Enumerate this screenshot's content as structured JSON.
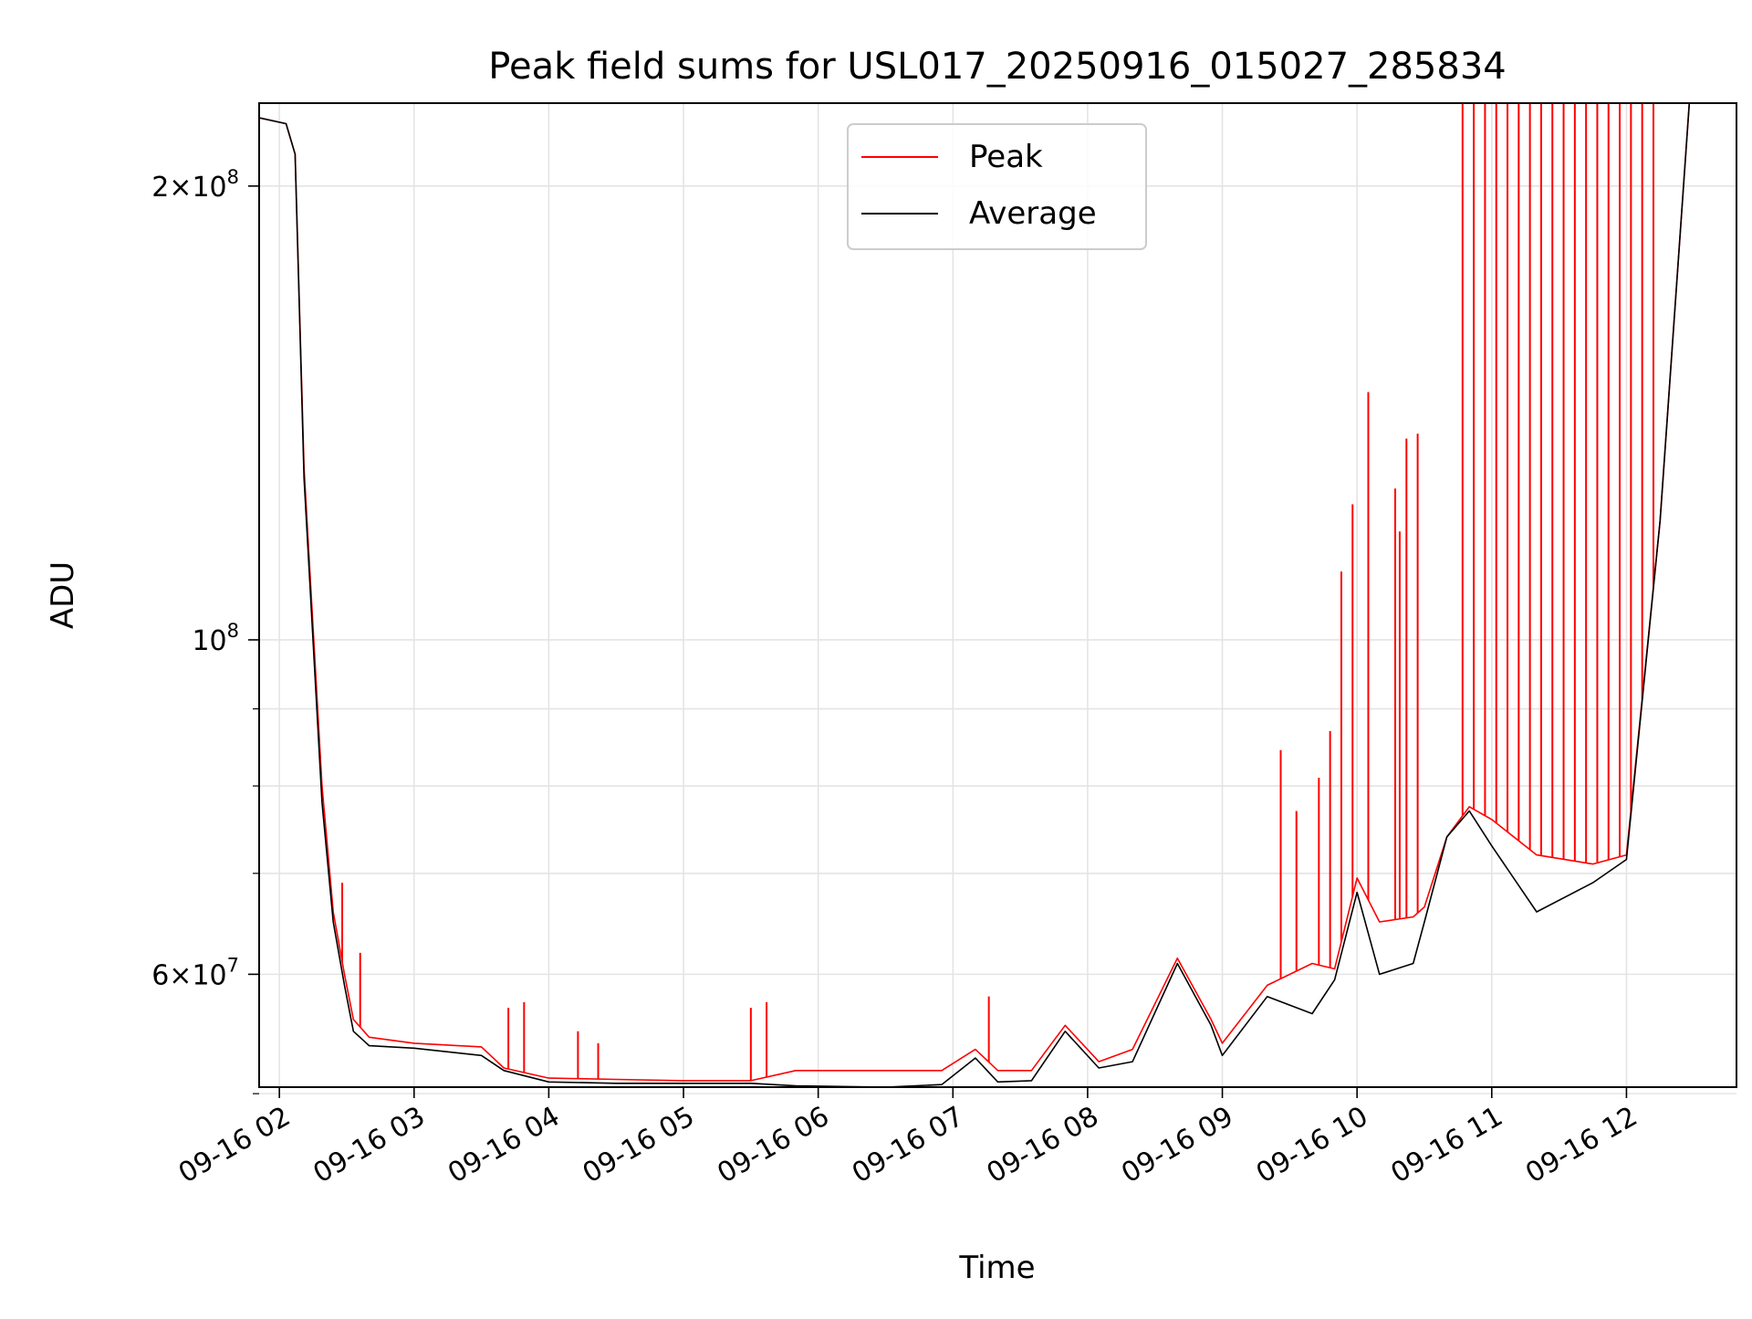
{
  "chart_data": {
    "type": "line",
    "title": "Peak field sums for USL017_20250916_015027_285834",
    "xlabel": "Time",
    "ylabel": "ADU",
    "x_scale": "time",
    "y_scale": "log",
    "xlim": [
      "2025-09-16 01:51",
      "2025-09-16 12:49"
    ],
    "ylim": [
      50500000,
      227000000
    ],
    "grid": true,
    "legend": {
      "placement": "upper center",
      "entries": [
        "Peak",
        "Average"
      ]
    },
    "x_ticks": [
      {
        "t": "2025-09-16 02:00",
        "label": "09-16 02"
      },
      {
        "t": "2025-09-16 03:00",
        "label": "09-16 03"
      },
      {
        "t": "2025-09-16 04:00",
        "label": "09-16 04"
      },
      {
        "t": "2025-09-16 05:00",
        "label": "09-16 05"
      },
      {
        "t": "2025-09-16 06:00",
        "label": "09-16 06"
      },
      {
        "t": "2025-09-16 07:00",
        "label": "09-16 07"
      },
      {
        "t": "2025-09-16 08:00",
        "label": "09-16 08"
      },
      {
        "t": "2025-09-16 09:00",
        "label": "09-16 09"
      },
      {
        "t": "2025-09-16 10:00",
        "label": "09-16 10"
      },
      {
        "t": "2025-09-16 11:00",
        "label": "09-16 11"
      },
      {
        "t": "2025-09-16 12:00",
        "label": "09-16 12"
      }
    ],
    "y_ticks": [
      {
        "v": 200000000,
        "base": "2×10",
        "exp": "8"
      },
      {
        "v": 100000000,
        "base": "10",
        "exp": "8"
      },
      {
        "v": 60000000,
        "base": "6×10",
        "exp": "7"
      }
    ],
    "y_minor_ticks": [
      50000000,
      70000000,
      80000000,
      90000000
    ],
    "series": [
      {
        "name": "Peak",
        "color": "#ff0000",
        "points": [
          [
            "2025-09-16 01:51",
            222000000
          ],
          [
            "2025-09-16 02:03",
            220000000
          ],
          [
            "2025-09-16 02:07",
            210000000
          ],
          [
            "2025-09-16 02:11",
            130000000
          ],
          [
            "2025-09-16 02:19",
            80000000
          ],
          [
            "2025-09-16 02:24",
            66000000
          ],
          [
            "2025-09-16 02:29",
            60000000
          ],
          [
            "2025-09-16 02:33",
            56000000
          ],
          [
            "2025-09-16 02:40",
            54500000
          ],
          [
            "2025-09-16 03:00",
            54000000
          ],
          [
            "2025-09-16 03:30",
            53700000
          ],
          [
            "2025-09-16 03:40",
            52000000
          ],
          [
            "2025-09-16 04:00",
            51200000
          ],
          [
            "2025-09-16 04:30",
            51100000
          ],
          [
            "2025-09-16 05:00",
            51000000
          ],
          [
            "2025-09-16 05:30",
            51000000
          ],
          [
            "2025-09-16 05:50",
            51800000
          ],
          [
            "2025-09-16 06:30",
            51800000
          ],
          [
            "2025-09-16 06:55",
            51800000
          ],
          [
            "2025-09-16 07:10",
            53500000
          ],
          [
            "2025-09-16 07:20",
            51800000
          ],
          [
            "2025-09-16 07:35",
            51800000
          ],
          [
            "2025-09-16 07:50",
            55500000
          ],
          [
            "2025-09-16 08:05",
            52500000
          ],
          [
            "2025-09-16 08:20",
            53500000
          ],
          [
            "2025-09-16 08:40",
            61500000
          ],
          [
            "2025-09-16 08:55",
            56000000
          ],
          [
            "2025-09-16 09:00",
            54000000
          ],
          [
            "2025-09-16 09:20",
            59000000
          ],
          [
            "2025-09-16 09:40",
            61000000
          ],
          [
            "2025-09-16 09:50",
            60500000
          ],
          [
            "2025-09-16 10:00",
            69500000
          ],
          [
            "2025-09-16 10:10",
            65000000
          ],
          [
            "2025-09-16 10:25",
            65500000
          ],
          [
            "2025-09-16 10:30",
            66500000
          ],
          [
            "2025-09-16 10:40",
            74000000
          ],
          [
            "2025-09-16 10:50",
            77500000
          ],
          [
            "2025-09-16 11:00",
            76000000
          ],
          [
            "2025-09-16 11:20",
            72000000
          ],
          [
            "2025-09-16 11:45",
            71000000
          ],
          [
            "2025-09-16 12:00",
            72000000
          ],
          [
            "2025-09-16 12:15",
            120000000
          ],
          [
            "2025-09-16 12:28",
            227000000
          ],
          [
            "2025-09-16 12:49",
            227000000
          ]
        ],
        "spikes": [
          [
            "2025-09-16 02:28",
            69000000
          ],
          [
            "2025-09-16 02:36",
            62000000
          ],
          [
            "2025-09-16 03:42",
            57000000
          ],
          [
            "2025-09-16 03:49",
            57500000
          ],
          [
            "2025-09-16 04:13",
            55000000
          ],
          [
            "2025-09-16 04:22",
            54000000
          ],
          [
            "2025-09-16 05:30",
            57000000
          ],
          [
            "2025-09-16 05:37",
            57500000
          ],
          [
            "2025-09-16 07:16",
            58000000
          ],
          [
            "2025-09-16 09:26",
            84500000
          ],
          [
            "2025-09-16 09:33",
            77000000
          ],
          [
            "2025-09-16 09:43",
            81000000
          ],
          [
            "2025-09-16 09:48",
            87000000
          ],
          [
            "2025-09-16 09:53",
            111000000
          ],
          [
            "2025-09-16 09:58",
            123000000
          ],
          [
            "2025-09-16 10:05",
            146000000
          ],
          [
            "2025-09-16 10:17",
            126000000
          ],
          [
            "2025-09-16 10:19",
            118000000
          ],
          [
            "2025-09-16 10:22",
            136000000
          ],
          [
            "2025-09-16 10:27",
            137000000
          ],
          [
            "2025-09-16 10:47",
            227000000
          ],
          [
            "2025-09-16 10:52",
            227000000
          ],
          [
            "2025-09-16 10:57",
            227000000
          ],
          [
            "2025-09-16 11:02",
            227000000
          ],
          [
            "2025-09-16 11:07",
            227000000
          ],
          [
            "2025-09-16 11:12",
            227000000
          ],
          [
            "2025-09-16 11:17",
            227000000
          ],
          [
            "2025-09-16 11:22",
            227000000
          ],
          [
            "2025-09-16 11:27",
            227000000
          ],
          [
            "2025-09-16 11:32",
            227000000
          ],
          [
            "2025-09-16 11:37",
            227000000
          ],
          [
            "2025-09-16 11:42",
            227000000
          ],
          [
            "2025-09-16 11:47",
            227000000
          ],
          [
            "2025-09-16 11:52",
            227000000
          ],
          [
            "2025-09-16 11:57",
            227000000
          ],
          [
            "2025-09-16 12:02",
            227000000
          ],
          [
            "2025-09-16 12:07",
            227000000
          ],
          [
            "2025-09-16 12:12",
            227000000
          ]
        ]
      },
      {
        "name": "Average",
        "color": "#000000",
        "points": [
          [
            "2025-09-16 01:51",
            222000000
          ],
          [
            "2025-09-16 02:03",
            220000000
          ],
          [
            "2025-09-16 02:07",
            210000000
          ],
          [
            "2025-09-16 02:11",
            128000000
          ],
          [
            "2025-09-16 02:19",
            78000000
          ],
          [
            "2025-09-16 02:24",
            65000000
          ],
          [
            "2025-09-16 02:29",
            59000000
          ],
          [
            "2025-09-16 02:33",
            55000000
          ],
          [
            "2025-09-16 02:40",
            53800000
          ],
          [
            "2025-09-16 03:00",
            53600000
          ],
          [
            "2025-09-16 03:30",
            53000000
          ],
          [
            "2025-09-16 03:40",
            51800000
          ],
          [
            "2025-09-16 04:00",
            50900000
          ],
          [
            "2025-09-16 04:30",
            50800000
          ],
          [
            "2025-09-16 05:00",
            50800000
          ],
          [
            "2025-09-16 05:30",
            50800000
          ],
          [
            "2025-09-16 05:50",
            50600000
          ],
          [
            "2025-09-16 06:30",
            50500000
          ],
          [
            "2025-09-16 06:55",
            50700000
          ],
          [
            "2025-09-16 07:10",
            52800000
          ],
          [
            "2025-09-16 07:20",
            50900000
          ],
          [
            "2025-09-16 07:35",
            51000000
          ],
          [
            "2025-09-16 07:50",
            55000000
          ],
          [
            "2025-09-16 08:05",
            52000000
          ],
          [
            "2025-09-16 08:20",
            52500000
          ],
          [
            "2025-09-16 08:40",
            61000000
          ],
          [
            "2025-09-16 08:55",
            55500000
          ],
          [
            "2025-09-16 09:00",
            53000000
          ],
          [
            "2025-09-16 09:20",
            58000000
          ],
          [
            "2025-09-16 09:40",
            56500000
          ],
          [
            "2025-09-16 09:50",
            59500000
          ],
          [
            "2025-09-16 10:00",
            68000000
          ],
          [
            "2025-09-16 10:10",
            60000000
          ],
          [
            "2025-09-16 10:25",
            61000000
          ],
          [
            "2025-09-16 10:30",
            65000000
          ],
          [
            "2025-09-16 10:40",
            74000000
          ],
          [
            "2025-09-16 10:50",
            77000000
          ],
          [
            "2025-09-16 11:00",
            73000000
          ],
          [
            "2025-09-16 11:20",
            66000000
          ],
          [
            "2025-09-16 11:45",
            69000000
          ],
          [
            "2025-09-16 12:00",
            71500000
          ],
          [
            "2025-09-16 12:15",
            120000000
          ],
          [
            "2025-09-16 12:28",
            227000000
          ],
          [
            "2025-09-16 12:49",
            227000000
          ]
        ]
      }
    ]
  }
}
